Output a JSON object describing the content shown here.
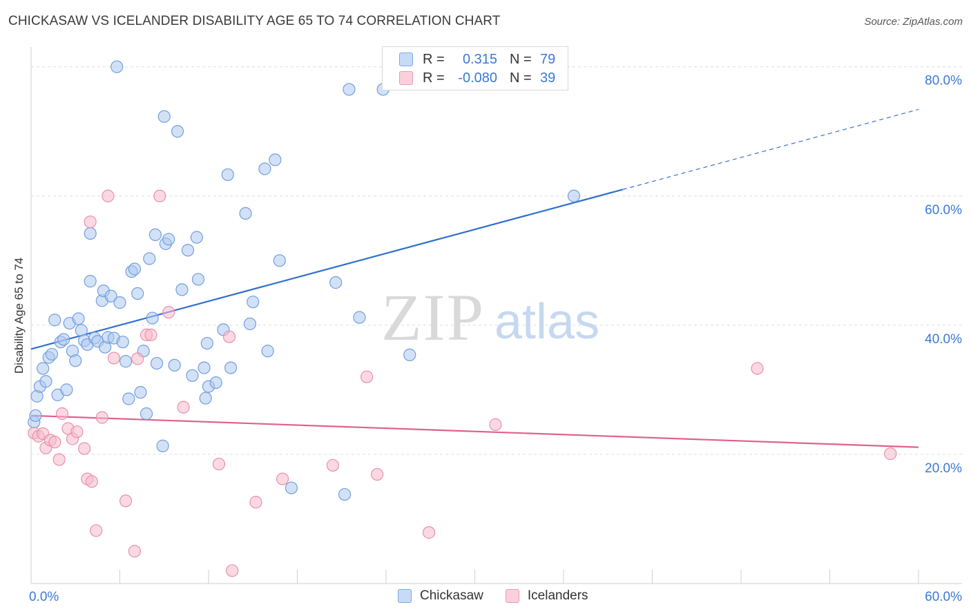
{
  "header": {
    "title": "CHICKASAW VS ICELANDER DISABILITY AGE 65 TO 74 CORRELATION CHART",
    "source": "Source: ZipAtlas.com"
  },
  "watermark": {
    "zip": "ZIP",
    "atlas": "atlas"
  },
  "legend": {
    "rows": [
      {
        "r_label": "R =",
        "r_value": "0.315",
        "n_label": "N =",
        "n_value": "79",
        "color": "#aec9f0"
      },
      {
        "r_label": "R =",
        "r_value": "-0.080",
        "n_label": "N =",
        "n_value": "39",
        "color": "#f7b9cc"
      }
    ]
  },
  "bottom_legend": [
    {
      "label": "Chickasaw",
      "color": "#aec9f0"
    },
    {
      "label": "Icelanders",
      "color": "#f7b9cc"
    }
  ],
  "colors": {
    "blue_point_fill": "#aec9f0",
    "blue_point_stroke": "#6f9fdc",
    "blue_line": "#2f6fcf",
    "pink_point_fill": "#f7b9cc",
    "pink_point_stroke": "#e98fab",
    "pink_line": "#e0608c",
    "grid": "#dddddd",
    "axis_label": "#3a78d6"
  },
  "chart_data": {
    "type": "scatter",
    "title": "CHICKASAW VS ICELANDER DISABILITY AGE 65 TO 74 CORRELATION CHART",
    "xlabel": "",
    "ylabel": "Disability Age 65 to 74",
    "xlim": [
      0,
      60
    ],
    "ylim": [
      0,
      82
    ],
    "x_tick_labels": [
      {
        "value": 0,
        "label": "0.0%"
      },
      {
        "value": 60,
        "label": "60.0%"
      }
    ],
    "y_tick_labels": [
      {
        "value": 20,
        "label": "20.0%"
      },
      {
        "value": 40,
        "label": "40.0%"
      },
      {
        "value": 60,
        "label": "60.0%"
      },
      {
        "value": 80,
        "label": "80.0%"
      }
    ],
    "grid": true,
    "legend_position": "top-center",
    "series": [
      {
        "name": "Chickasaw",
        "r": 0.315,
        "n": 79,
        "trend": {
          "x0": 0,
          "y0": 36.3,
          "x1": 40,
          "y1": 61.0,
          "dash_to_x": 60,
          "dash_to_y": 73.4
        },
        "points": [
          [
            0.2,
            25.0
          ],
          [
            0.4,
            29.0
          ],
          [
            0.6,
            30.5
          ],
          [
            0.8,
            33.3
          ],
          [
            1.0,
            31.3
          ],
          [
            1.2,
            35.0
          ],
          [
            1.4,
            35.5
          ],
          [
            1.6,
            40.8
          ],
          [
            1.8,
            29.2
          ],
          [
            2.0,
            37.4
          ],
          [
            2.2,
            37.8
          ],
          [
            2.4,
            30.0
          ],
          [
            2.6,
            40.3
          ],
          [
            2.8,
            36.0
          ],
          [
            3.0,
            34.5
          ],
          [
            3.2,
            41.0
          ],
          [
            3.4,
            39.2
          ],
          [
            3.6,
            37.6
          ],
          [
            3.8,
            37.0
          ],
          [
            4.0,
            54.2
          ],
          [
            4.0,
            46.8
          ],
          [
            4.3,
            38.0
          ],
          [
            4.5,
            37.5
          ],
          [
            4.8,
            43.8
          ],
          [
            4.9,
            45.3
          ],
          [
            5.0,
            36.6
          ],
          [
            5.2,
            38.1
          ],
          [
            5.4,
            44.5
          ],
          [
            5.6,
            38.0
          ],
          [
            5.8,
            80.0
          ],
          [
            6.0,
            43.5
          ],
          [
            6.2,
            37.4
          ],
          [
            6.4,
            34.4
          ],
          [
            6.6,
            28.6
          ],
          [
            6.8,
            48.3
          ],
          [
            7.0,
            48.7
          ],
          [
            7.2,
            44.9
          ],
          [
            7.4,
            29.6
          ],
          [
            7.6,
            36.0
          ],
          [
            7.8,
            26.3
          ],
          [
            8.0,
            50.3
          ],
          [
            8.2,
            41.1
          ],
          [
            8.4,
            54.0
          ],
          [
            8.5,
            34.1
          ],
          [
            8.9,
            21.3
          ],
          [
            9.0,
            72.3
          ],
          [
            9.1,
            52.6
          ],
          [
            9.3,
            53.3
          ],
          [
            9.7,
            33.8
          ],
          [
            9.9,
            70.0
          ],
          [
            10.2,
            45.5
          ],
          [
            10.6,
            51.6
          ],
          [
            10.9,
            32.2
          ],
          [
            11.2,
            53.6
          ],
          [
            11.3,
            47.1
          ],
          [
            11.7,
            33.4
          ],
          [
            11.8,
            28.7
          ],
          [
            11.9,
            37.2
          ],
          [
            12.0,
            30.5
          ],
          [
            12.5,
            31.1
          ],
          [
            13.0,
            39.3
          ],
          [
            13.3,
            63.3
          ],
          [
            13.5,
            33.4
          ],
          [
            14.5,
            57.3
          ],
          [
            14.8,
            40.2
          ],
          [
            15.0,
            43.6
          ],
          [
            15.8,
            64.2
          ],
          [
            16.0,
            36.0
          ],
          [
            16.5,
            65.6
          ],
          [
            16.8,
            50.0
          ],
          [
            17.6,
            14.8
          ],
          [
            20.6,
            46.6
          ],
          [
            21.2,
            13.8
          ],
          [
            21.5,
            76.5
          ],
          [
            22.2,
            41.2
          ],
          [
            23.8,
            76.5
          ],
          [
            25.6,
            35.4
          ],
          [
            36.7,
            60.0
          ],
          [
            0.3,
            26.0
          ]
        ]
      },
      {
        "name": "Icelanders",
        "r": -0.08,
        "n": 39,
        "trend": {
          "x0": 0,
          "y0": 26.0,
          "x1": 60,
          "y1": 21.1
        },
        "points": [
          [
            0.2,
            23.3
          ],
          [
            0.5,
            22.8
          ],
          [
            0.8,
            23.2
          ],
          [
            1.0,
            21.0
          ],
          [
            1.3,
            22.2
          ],
          [
            1.6,
            21.9
          ],
          [
            1.9,
            19.2
          ],
          [
            2.1,
            26.3
          ],
          [
            2.5,
            24.0
          ],
          [
            2.8,
            22.4
          ],
          [
            3.1,
            23.5
          ],
          [
            3.6,
            20.9
          ],
          [
            3.8,
            16.2
          ],
          [
            4.0,
            56.0
          ],
          [
            4.1,
            15.8
          ],
          [
            4.4,
            8.2
          ],
          [
            4.8,
            25.7
          ],
          [
            5.2,
            60.0
          ],
          [
            5.6,
            34.9
          ],
          [
            6.4,
            12.8
          ],
          [
            7.0,
            5.0
          ],
          [
            7.2,
            34.8
          ],
          [
            7.8,
            38.5
          ],
          [
            8.1,
            38.5
          ],
          [
            8.7,
            60.0
          ],
          [
            9.3,
            42.0
          ],
          [
            10.3,
            27.3
          ],
          [
            12.7,
            18.5
          ],
          [
            13.4,
            38.2
          ],
          [
            13.6,
            2.0
          ],
          [
            15.2,
            12.6
          ],
          [
            17.0,
            16.2
          ],
          [
            20.4,
            18.3
          ],
          [
            22.7,
            32.0
          ],
          [
            23.4,
            16.9
          ],
          [
            26.9,
            7.9
          ],
          [
            31.4,
            24.6
          ],
          [
            49.1,
            33.3
          ],
          [
            58.1,
            20.1
          ]
        ]
      }
    ]
  }
}
